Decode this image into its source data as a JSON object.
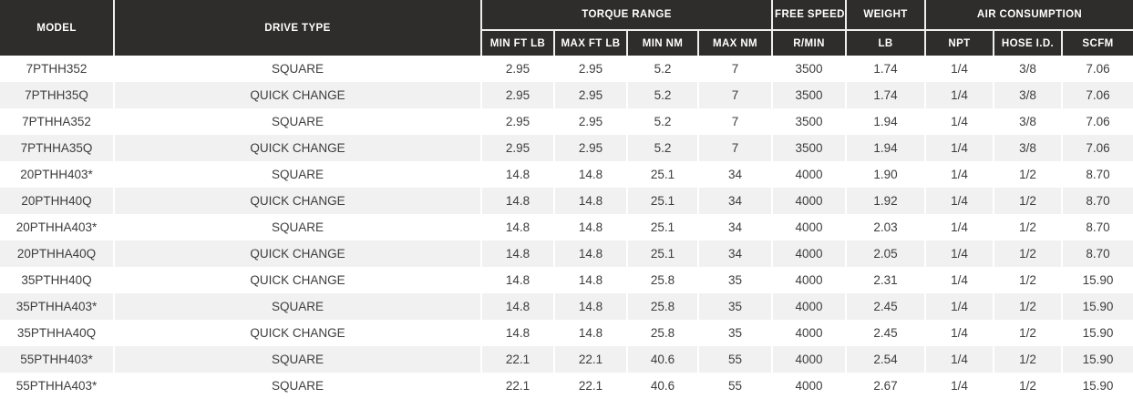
{
  "table": {
    "header_groups": [
      {
        "label": "MODEL"
      },
      {
        "label": "DRIVE TYPE"
      },
      {
        "label": "TORQUE RANGE"
      },
      {
        "label": "FREE SPEED"
      },
      {
        "label": "WEIGHT"
      },
      {
        "label": "AIR CONSUMPTION"
      }
    ],
    "subheaders": [
      "MIN FT LB",
      "MAX FT LB",
      "MIN NM",
      "MAX NM",
      "R/MIN",
      "LB",
      "NPT",
      "HOSE I.D.",
      "SCFM"
    ],
    "column_keys": [
      "model",
      "drive-type",
      "min-ft-lb",
      "max-ft-lb",
      "min-nm",
      "max-nm",
      "r-min",
      "lb",
      "npt",
      "hose-id",
      "scfm"
    ],
    "rows": [
      [
        "7PTHH352",
        "SQUARE",
        "2.95",
        "2.95",
        "5.2",
        "7",
        "3500",
        "1.74",
        "1/4",
        "3/8",
        "7.06"
      ],
      [
        "7PTHH35Q",
        "QUICK CHANGE",
        "2.95",
        "2.95",
        "5.2",
        "7",
        "3500",
        "1.74",
        "1/4",
        "3/8",
        "7.06"
      ],
      [
        "7PTHHA352",
        "SQUARE",
        "2.95",
        "2.95",
        "5.2",
        "7",
        "3500",
        "1.94",
        "1/4",
        "3/8",
        "7.06"
      ],
      [
        "7PTHHA35Q",
        "QUICK CHANGE",
        "2.95",
        "2.95",
        "5.2",
        "7",
        "3500",
        "1.94",
        "1/4",
        "3/8",
        "7.06"
      ],
      [
        "20PTHH403*",
        "SQUARE",
        "14.8",
        "14.8",
        "25.1",
        "34",
        "4000",
        "1.90",
        "1/4",
        "1/2",
        "8.70"
      ],
      [
        "20PTHH40Q",
        "QUICK CHANGE",
        "14.8",
        "14.8",
        "25.1",
        "34",
        "4000",
        "1.92",
        "1/4",
        "1/2",
        "8.70"
      ],
      [
        "20PTHHA403*",
        "SQUARE",
        "14.8",
        "14.8",
        "25.1",
        "34",
        "4000",
        "2.03",
        "1/4",
        "1/2",
        "8.70"
      ],
      [
        "20PTHHA40Q",
        "QUICK CHANGE",
        "14.8",
        "14.8",
        "25.1",
        "34",
        "4000",
        "2.05",
        "1/4",
        "1/2",
        "8.70"
      ],
      [
        "35PTHH40Q",
        "QUICK CHANGE",
        "14.8",
        "14.8",
        "25.8",
        "35",
        "4000",
        "2.31",
        "1/4",
        "1/2",
        "15.90"
      ],
      [
        "35PTHHA403*",
        "SQUARE",
        "14.8",
        "14.8",
        "25.8",
        "35",
        "4000",
        "2.45",
        "1/4",
        "1/2",
        "15.90"
      ],
      [
        "35PTHHA40Q",
        "QUICK CHANGE",
        "14.8",
        "14.8",
        "25.8",
        "35",
        "4000",
        "2.45",
        "1/4",
        "1/2",
        "15.90"
      ],
      [
        "55PTHH403*",
        "SQUARE",
        "22.1",
        "22.1",
        "40.6",
        "55",
        "4000",
        "2.54",
        "1/4",
        "1/2",
        "15.90"
      ],
      [
        "55PTHHA403*",
        "SQUARE",
        "22.1",
        "22.1",
        "40.6",
        "55",
        "4000",
        "2.67",
        "1/4",
        "1/2",
        "15.90"
      ]
    ]
  },
  "colors": {
    "header_bg": "#2e2d2c",
    "header_text": "#ffffff",
    "header_separator": "#efefef",
    "separator": "#ffffff",
    "stripe_bg": "#f1f1f2",
    "row_bg": "#ffffff",
    "data_text": "#3d3d3d"
  }
}
